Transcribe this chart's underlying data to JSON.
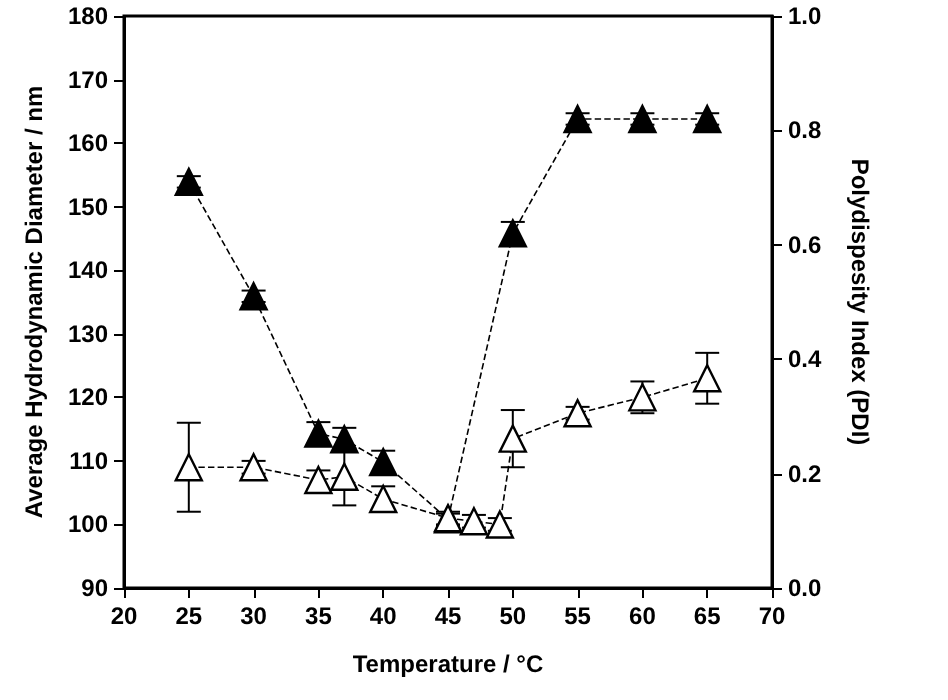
{
  "chart_data": {
    "type": "line",
    "xlabel": "Temperature / °C",
    "ylabel": "Average Hydrodynamic Diameter / nm",
    "y2label": "Polydispesity Index (PDI)",
    "x": [
      25,
      30,
      35,
      37,
      40,
      45,
      47,
      49,
      50,
      55,
      60,
      65
    ],
    "xlim": [
      20,
      70
    ],
    "xticks": [
      20,
      25,
      30,
      35,
      40,
      45,
      50,
      55,
      60,
      65,
      70
    ],
    "ylim": [
      90,
      180
    ],
    "yticks": [
      90,
      100,
      110,
      120,
      130,
      140,
      150,
      160,
      170,
      180
    ],
    "y2lim": [
      0,
      1
    ],
    "y2ticks": [
      {
        "value": 0,
        "label": "0.0"
      },
      0.2,
      0.4,
      0.6,
      0.8,
      {
        "value": 1,
        "label": "1.0"
      }
    ],
    "series": [
      {
        "color": "#000000",
        "axis": "y2",
        "values": [
          0.71,
          0.51,
          0.27,
          0.26,
          0.22,
          0.12,
          null,
          null,
          0.62,
          0.82,
          0.82,
          0.82
        ],
        "errors": [
          0.01,
          0.01,
          0.02,
          0.02,
          0.02,
          0.01,
          null,
          null,
          0.02,
          0.01,
          0.01,
          0.01
        ]
      },
      {
        "color": "#000000",
        "values": [
          109,
          109,
          107,
          107.5,
          104,
          101,
          100.5,
          100,
          113.5,
          117.5,
          120,
          123
        ],
        "errors": [
          7,
          1,
          1.5,
          4.5,
          2,
          1,
          1,
          1,
          4.5,
          1,
          2.5,
          4
        ]
      }
    ],
    "marker": "triangle",
    "line_style": "dashed",
    "grid": false
  }
}
